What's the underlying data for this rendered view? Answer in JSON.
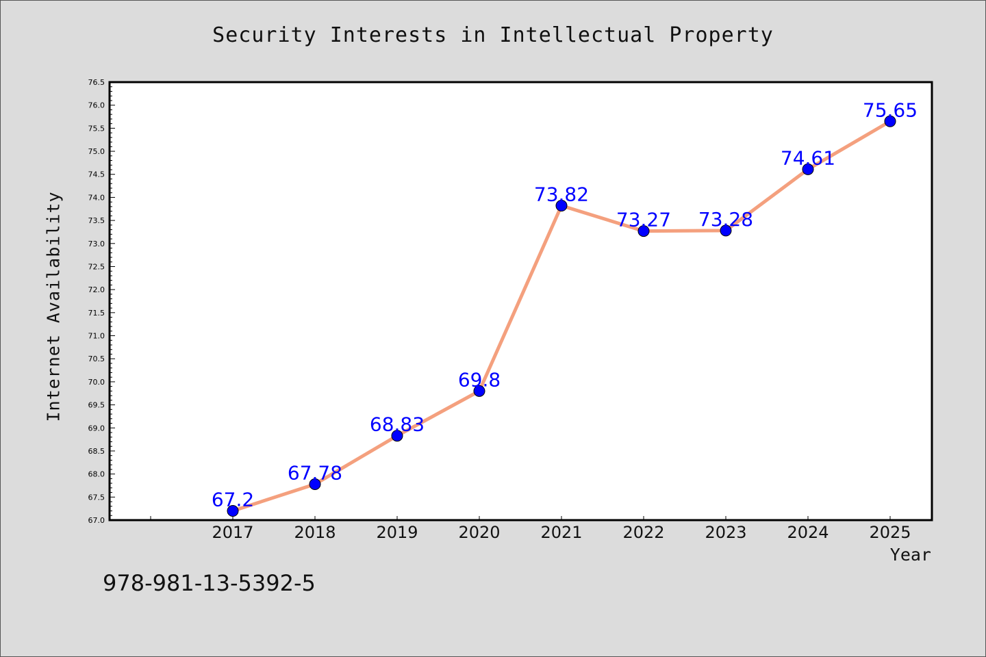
{
  "chart_data": {
    "type": "line",
    "title": "Security Interests in Intellectual Property",
    "xlabel": "Year",
    "ylabel": "Internet Availability",
    "categories": [
      "2017",
      "2018",
      "2019",
      "2020",
      "2021",
      "2022",
      "2023",
      "2024",
      "2025"
    ],
    "values": [
      67.2,
      67.78,
      68.83,
      69.8,
      73.82,
      73.27,
      73.28,
      74.61,
      75.65
    ],
    "data_labels": [
      "67.2",
      "67.78",
      "68.83",
      "69.8",
      "73.82",
      "73.27",
      "73.28",
      "74.61",
      "75.65"
    ],
    "ylim": [
      67.0,
      76.5
    ],
    "y_ticks": [
      "67.0",
      "67.5",
      "68.0",
      "68.5",
      "69.0",
      "69.5",
      "70.0",
      "70.5",
      "71.0",
      "71.5",
      "72.0",
      "72.5",
      "73.0",
      "73.5",
      "74.0",
      "74.5",
      "75.0",
      "75.5",
      "76.0",
      "76.5"
    ],
    "grid": false,
    "colors": {
      "line": "#f4a07e",
      "marker": "#0000ff",
      "label": "#0000ff",
      "background": "#dcdcdc",
      "plot_background": "#ffffff"
    }
  },
  "footer": {
    "isbn": "978-981-13-5392-5"
  }
}
